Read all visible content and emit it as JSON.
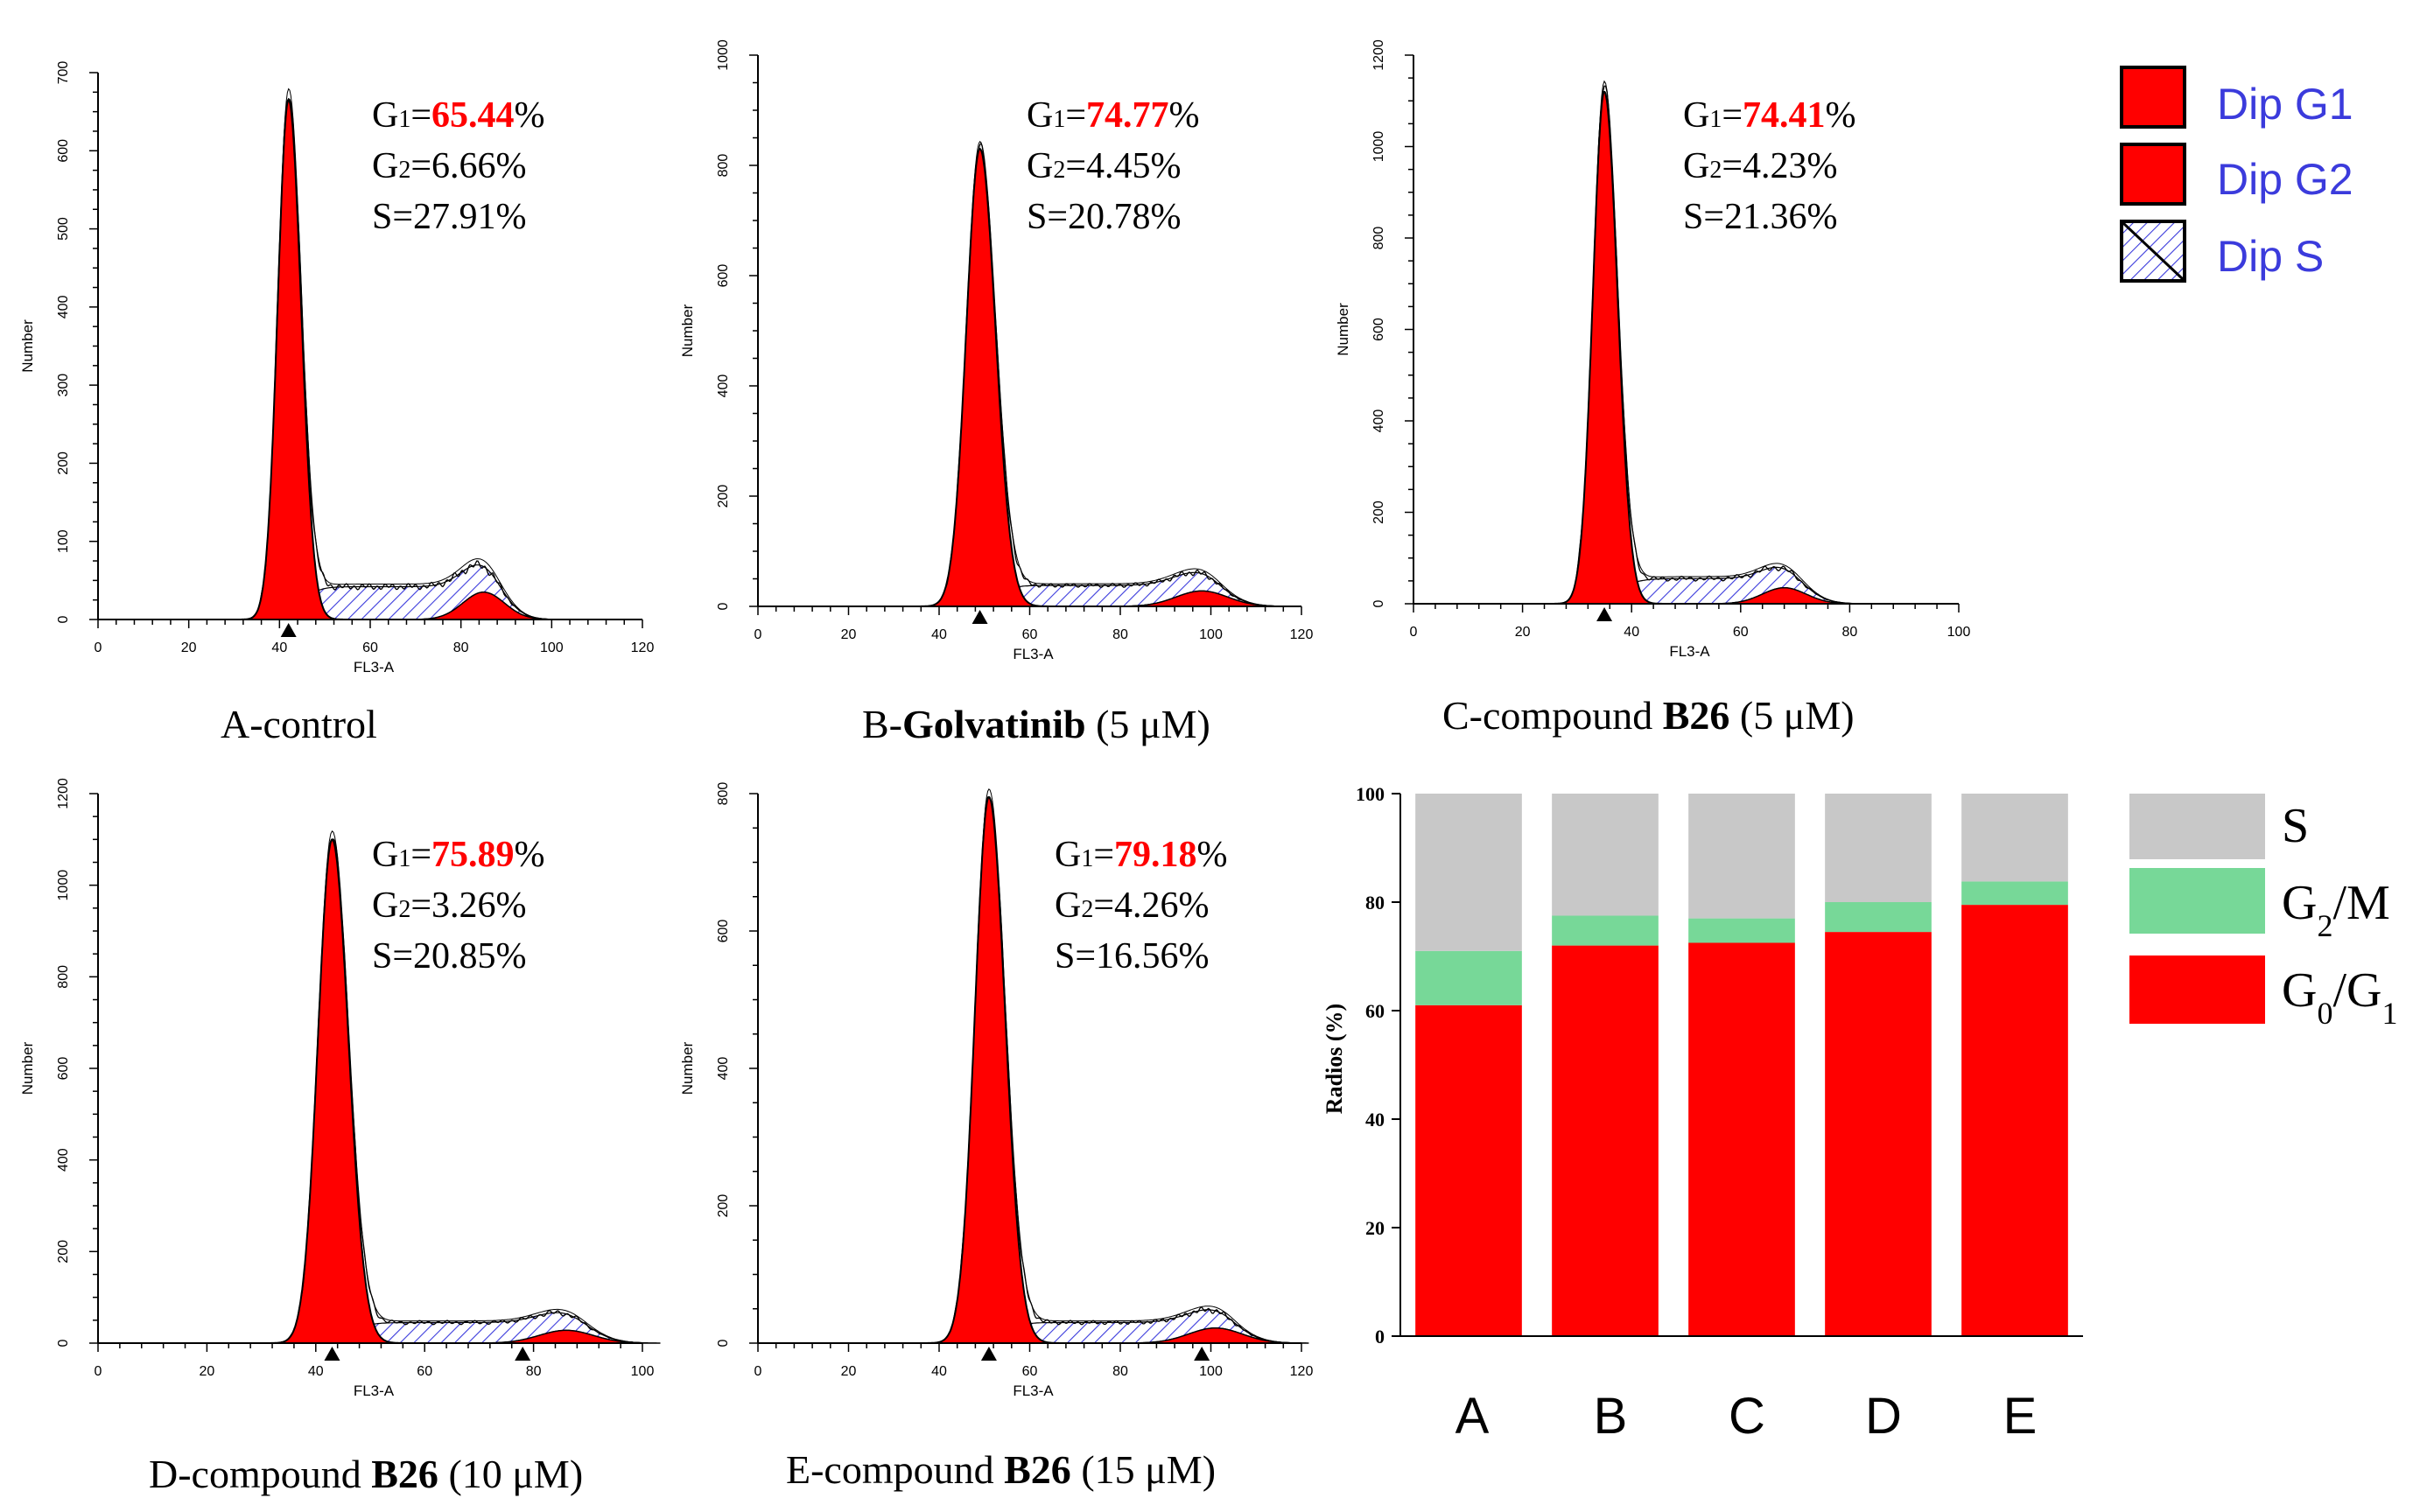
{
  "figure_type": "flow cytometry cell cycle histograms and stacked bar chart",
  "chart_data": [
    {
      "type": "area",
      "title": "A-control",
      "caption": {
        "prefix": "A-control",
        "bold": "",
        "suffix": ""
      },
      "xlabel": "FL3-A",
      "ylabel": "Number",
      "xlim": [
        0,
        120
      ],
      "ylim": [
        0,
        700
      ],
      "x_ticks": [
        0,
        20,
        40,
        60,
        80,
        100,
        120
      ],
      "y_ticks": [
        0,
        100,
        200,
        300,
        400,
        500,
        600,
        700
      ],
      "g1_peak_x": 42,
      "g1_peak_height": 665,
      "g1_width": 2.4,
      "g2_peak_x": 85,
      "g2_peak_height": 35,
      "s_level": 42,
      "markers": [
        42
      ],
      "stats": {
        "G1": "65.44",
        "G2": "6.66%",
        "S": "27.91%"
      }
    },
    {
      "type": "area",
      "title": "B-Golvatinib (5 μM)",
      "caption": {
        "prefix": "B-",
        "bold": "Golvatinib",
        "suffix": " (5 μM)"
      },
      "xlabel": "FL3-A",
      "ylabel": "Number",
      "xlim": [
        0,
        120
      ],
      "ylim": [
        0,
        1000
      ],
      "x_ticks": [
        0,
        20,
        40,
        60,
        80,
        100,
        120
      ],
      "y_ticks": [
        0,
        200,
        400,
        600,
        800,
        1000
      ],
      "g1_peak_x": 49,
      "g1_peak_height": 830,
      "g1_width": 3.0,
      "g2_peak_x": 98,
      "g2_peak_height": 28,
      "s_level": 38,
      "markers": [
        49
      ],
      "stats": {
        "G1": "74.77",
        "G2": "4.45%",
        "S": "20.78%"
      }
    },
    {
      "type": "area",
      "title": "C-compound B26 (5 μM)",
      "caption": {
        "prefix": "C-compound ",
        "bold": "B26",
        "suffix": " (5 μM)"
      },
      "xlabel": "FL3-A",
      "ylabel": "Number",
      "xlim": [
        0,
        100
      ],
      "ylim": [
        0,
        1200
      ],
      "x_ticks": [
        0,
        20,
        40,
        60,
        80,
        100
      ],
      "y_ticks": [
        0,
        200,
        400,
        600,
        800,
        1000,
        1200
      ],
      "g1_peak_x": 35,
      "g1_peak_height": 1120,
      "g1_width": 2.1,
      "g2_peak_x": 68,
      "g2_peak_height": 35,
      "s_level": 55,
      "markers": [
        35
      ],
      "stats": {
        "G1": "74.41",
        "G2": "4.23%",
        "S": "21.36%"
      }
    },
    {
      "type": "area",
      "title": "D-compound B26 (10 μM)",
      "caption": {
        "prefix": "D-compound ",
        "bold": "B26",
        "suffix": " (10 μM)"
      },
      "xlabel": "FL3-A",
      "ylabel": "Number",
      "xlim": [
        0,
        100
      ],
      "ylim": [
        0,
        1200
      ],
      "x_ticks": [
        0,
        20,
        40,
        60,
        80,
        100
      ],
      "y_ticks": [
        0,
        200,
        400,
        600,
        800,
        1000,
        1200
      ],
      "g1_peak_x": 43,
      "g1_peak_height": 1100,
      "g1_width": 2.6,
      "g2_peak_x": 86,
      "g2_peak_height": 28,
      "s_level": 45,
      "markers": [
        43,
        78
      ],
      "stats": {
        "G1": "75.89",
        "G2": "3.26%",
        "S": "20.85%"
      }
    },
    {
      "type": "area",
      "title": "E-compound B26 (15 μM)",
      "caption": {
        "prefix": "E-compound ",
        "bold": "B26",
        "suffix": " (15 μM)"
      },
      "xlabel": "FL3-A",
      "ylabel": "Number",
      "xlim": [
        0,
        120
      ],
      "ylim": [
        0,
        800
      ],
      "x_ticks": [
        0,
        20,
        40,
        60,
        80,
        100,
        120
      ],
      "y_ticks": [
        0,
        200,
        400,
        600,
        800
      ],
      "g1_peak_x": 51,
      "g1_peak_height": 795,
      "g1_width": 3.1,
      "g2_peak_x": 101,
      "g2_peak_height": 22,
      "s_level": 30,
      "markers": [
        51,
        98
      ],
      "stats": {
        "G1": "79.18",
        "G2": "4.26%",
        "S": "16.56%"
      }
    },
    {
      "type": "bar",
      "stacked": true,
      "categories": [
        "A",
        "B",
        "C",
        "D",
        "E"
      ],
      "ylabel": "Radios (%)",
      "ylim": [
        0,
        100
      ],
      "y_ticks": [
        0,
        20,
        40,
        60,
        80,
        100
      ],
      "series": [
        {
          "name": "G0/G1",
          "color": "#ff0000",
          "values": [
            61,
            72,
            72.5,
            74.5,
            79.5
          ]
        },
        {
          "name": "G2/M",
          "color": "#77d898",
          "values": [
            10,
            5.5,
            4.5,
            5.5,
            4.3
          ]
        },
        {
          "name": "S",
          "color": "#c8c8c8",
          "values": [
            29,
            22.5,
            23,
            20,
            16.2
          ]
        }
      ]
    }
  ],
  "histogram_legend": [
    {
      "label": "Dip G1",
      "swatch": "solid",
      "color": "#ff0000"
    },
    {
      "label": "Dip G2",
      "swatch": "solid",
      "color": "#ff0000"
    },
    {
      "label": "Dip S",
      "swatch": "hatch",
      "color": "#3b3bdc"
    }
  ],
  "bar_legend": [
    {
      "main": "S",
      "sub": "",
      "tail": "",
      "color": "#c8c8c8"
    },
    {
      "main": "G",
      "sub": "2",
      "tail": "/M",
      "color": "#77d898"
    },
    {
      "main": "G",
      "sub": "0",
      "tail": "/G",
      "sub2": "1",
      "color": "#ff0000"
    }
  ],
  "stat_labels": {
    "g1": "G",
    "g1_sub": "1",
    "g2": "G",
    "g2_sub": "2",
    "s": "S",
    "eq": "=",
    "pct": "%"
  }
}
